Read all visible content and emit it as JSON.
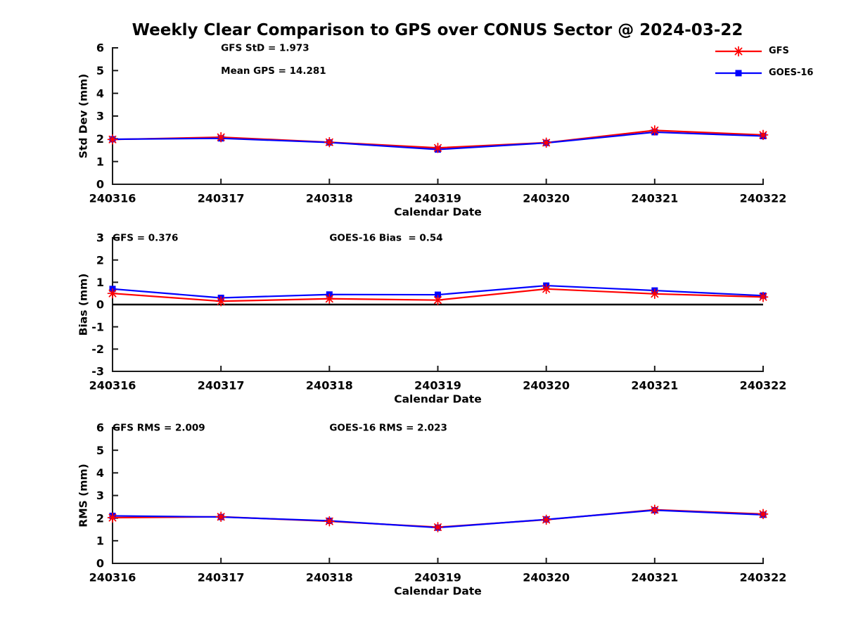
{
  "title": "Weekly Clear Comparison to GPS over CONUS Sector @ 2024-03-22",
  "colors": {
    "background": "#ffffff",
    "axis": "#1a1a1a",
    "text": "#000000",
    "gfs": "#ff0000",
    "goes16": "#0000ff",
    "zero_line": "#000000"
  },
  "legend": {
    "position": "top-right-outside",
    "items": [
      {
        "label": "GFS",
        "color": "#ff0000",
        "marker": "asterisk"
      },
      {
        "label": "GOES-16",
        "color": "#0000ff",
        "marker": "square"
      }
    ]
  },
  "chart_data": [
    {
      "id": "stddev",
      "type": "line",
      "xlabel": "Calendar Date",
      "ylabel": "Std Dev (mm)",
      "ylim": [
        0,
        6
      ],
      "yticks": [
        0,
        1,
        2,
        3,
        4,
        5,
        6
      ],
      "grid": false,
      "zero_line": false,
      "categories": [
        "240316",
        "240317",
        "240318",
        "240319",
        "240320",
        "240321",
        "240322"
      ],
      "series": [
        {
          "name": "GFS",
          "color": "#ff0000",
          "marker": "asterisk",
          "values": [
            1.97,
            2.07,
            1.85,
            1.6,
            1.83,
            2.37,
            2.17
          ]
        },
        {
          "name": "GOES-16",
          "color": "#0000ff",
          "marker": "square",
          "values": [
            1.98,
            2.02,
            1.84,
            1.53,
            1.82,
            2.29,
            2.12
          ]
        }
      ],
      "annotations": [
        {
          "text": "GFS StD = 1.973",
          "x": 1,
          "y": 6
        },
        {
          "text": "Mean GPS = 14.281",
          "x": 1,
          "y": 5
        }
      ]
    },
    {
      "id": "bias",
      "type": "line",
      "xlabel": "Calendar Date",
      "ylabel": "Bias (mm)",
      "ylim": [
        -3,
        3
      ],
      "yticks": [
        -3,
        -2,
        -1,
        0,
        1,
        2,
        3
      ],
      "grid": false,
      "zero_line": true,
      "categories": [
        "240316",
        "240317",
        "240318",
        "240319",
        "240320",
        "240321",
        "240322"
      ],
      "series": [
        {
          "name": "GFS",
          "color": "#ff0000",
          "marker": "asterisk",
          "values": [
            0.5,
            0.15,
            0.26,
            0.2,
            0.7,
            0.48,
            0.34
          ]
        },
        {
          "name": "GOES-16",
          "color": "#0000ff",
          "marker": "square",
          "values": [
            0.7,
            0.3,
            0.45,
            0.44,
            0.85,
            0.63,
            0.4
          ]
        }
      ],
      "annotations": [
        {
          "text": "GFS = 0.376",
          "x": 0,
          "y": 3
        },
        {
          "text": "GOES-16 Bias  = 0.54",
          "x": 2,
          "y": 3
        }
      ]
    },
    {
      "id": "rms",
      "type": "line",
      "xlabel": "Calendar Date",
      "ylabel": "RMS (mm)",
      "ylim": [
        0,
        6
      ],
      "yticks": [
        0,
        1,
        2,
        3,
        4,
        5,
        6
      ],
      "grid": false,
      "zero_line": false,
      "categories": [
        "240316",
        "240317",
        "240318",
        "240319",
        "240320",
        "240321",
        "240322"
      ],
      "series": [
        {
          "name": "GFS",
          "color": "#ff0000",
          "marker": "asterisk",
          "values": [
            2.02,
            2.06,
            1.86,
            1.6,
            1.93,
            2.37,
            2.18
          ]
        },
        {
          "name": "GOES-16",
          "color": "#0000ff",
          "marker": "square",
          "values": [
            2.1,
            2.05,
            1.88,
            1.58,
            1.94,
            2.35,
            2.15
          ]
        }
      ],
      "annotations": [
        {
          "text": "GFS RMS = 2.009",
          "x": 0,
          "y": 6
        },
        {
          "text": "GOES-16 RMS = 2.023",
          "x": 2,
          "y": 6
        }
      ]
    }
  ]
}
